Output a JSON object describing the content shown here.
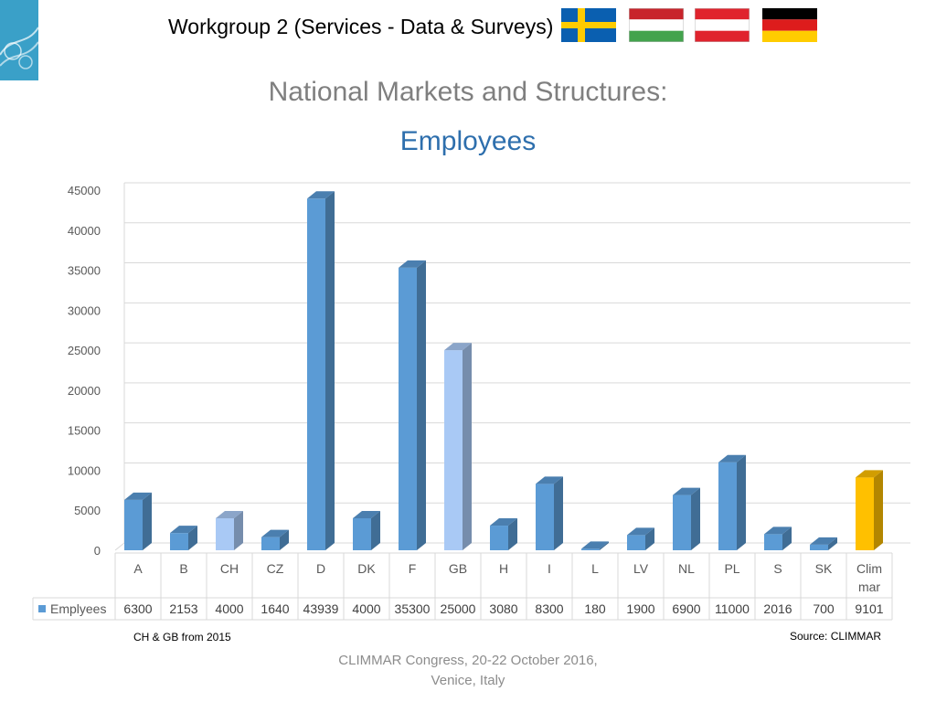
{
  "header": {
    "title": "Workgroup 2 (Services - Data & Surveys)",
    "flags": [
      "sweden-flag",
      "hungary-flag",
      "austria-flag",
      "germany-flag"
    ]
  },
  "slide": {
    "title": "National Markets and Structures:",
    "subtitle": "Employees"
  },
  "chart_data": {
    "type": "bar",
    "categories": [
      "A",
      "B",
      "CH",
      "CZ",
      "D",
      "DK",
      "F",
      "GB",
      "H",
      "I",
      "L",
      "LV",
      "NL",
      "PL",
      "S",
      "SK",
      "Clim mar"
    ],
    "category_lines": [
      [
        "A"
      ],
      [
        "B"
      ],
      [
        "CH"
      ],
      [
        "CZ"
      ],
      [
        "D"
      ],
      [
        "DK"
      ],
      [
        "F"
      ],
      [
        "GB"
      ],
      [
        "H"
      ],
      [
        "I"
      ],
      [
        "L"
      ],
      [
        "LV"
      ],
      [
        "NL"
      ],
      [
        "PL"
      ],
      [
        "S"
      ],
      [
        "SK"
      ],
      [
        "Clim",
        "mar"
      ]
    ],
    "series": [
      {
        "name": "Emplyees",
        "values": [
          6300,
          2153,
          4000,
          1640,
          43939,
          4000,
          35300,
          25000,
          3080,
          8300,
          180,
          1900,
          6900,
          11000,
          2016,
          700,
          9101
        ]
      }
    ],
    "ylim": [
      0,
      45000
    ],
    "yticks": [
      0,
      5000,
      10000,
      15000,
      20000,
      25000,
      30000,
      35000,
      40000,
      45000
    ],
    "grid": true,
    "legend": "data-table",
    "colors": {
      "default": "#5b9bd5",
      "highlight": "#a9c9f5",
      "climmar": "#ffc000",
      "highlighted_categories": [
        "CH",
        "GB"
      ],
      "climmar_category": "Clim mar"
    }
  },
  "notes": {
    "left": "CH & GB from 2015",
    "right": "Source: CLIMMAR"
  },
  "footer": {
    "line1": "CLIMMAR Congress, 20-22 October 2016,",
    "line2": "Venice, Italy"
  }
}
